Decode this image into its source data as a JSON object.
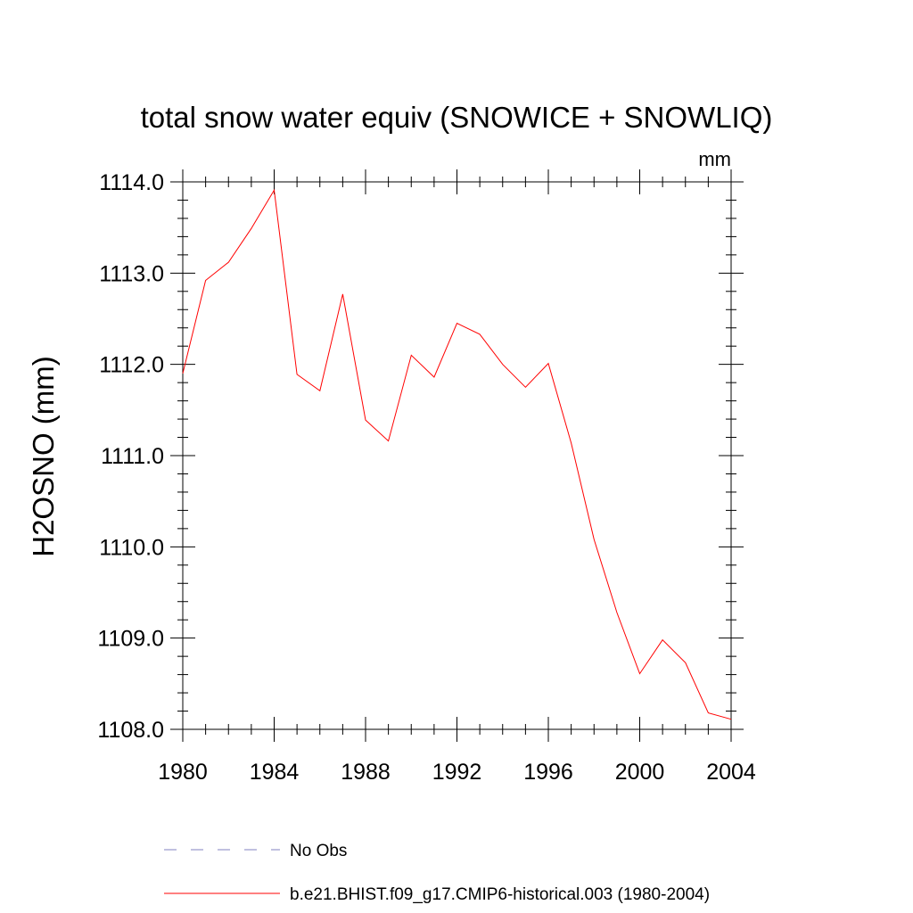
{
  "chart_data": {
    "type": "line",
    "title": "total snow water equiv (SNOWICE + SNOWLIQ)",
    "units_label": "mm",
    "ylabel": "H2OSNO  (mm)",
    "xlabel": "",
    "xlim": [
      1980,
      2004
    ],
    "ylim": [
      1108.0,
      1114.0
    ],
    "x_ticks": [
      1980,
      1984,
      1988,
      1992,
      1996,
      2000,
      2004
    ],
    "x_tick_labels": [
      "1980",
      "1984",
      "1988",
      "1992",
      "1996",
      "2000",
      "2004"
    ],
    "y_ticks": [
      1108.0,
      1109.0,
      1110.0,
      1111.0,
      1112.0,
      1113.0,
      1114.0
    ],
    "y_tick_labels": [
      "1108.0",
      "1109.0",
      "1110.0",
      "1111.0",
      "1112.0",
      "1113.0",
      "1114.0"
    ],
    "grid": false,
    "legend_position": "bottom",
    "series": [
      {
        "name": "No Obs",
        "color": "#8080c0",
        "style": "dashed",
        "x": [],
        "values": []
      },
      {
        "name": "b.e21.BHIST.f09_g17.CMIP6-historical.003 (1980-2004)",
        "color": "#ff0000",
        "style": "solid",
        "x": [
          1980,
          1981,
          1982,
          1983,
          1984,
          1985,
          1986,
          1987,
          1988,
          1989,
          1990,
          1991,
          1992,
          1993,
          1994,
          1995,
          1996,
          1997,
          1998,
          1999,
          2000,
          2001,
          2002,
          2003,
          2004
        ],
        "values": [
          1111.9,
          1112.92,
          1113.12,
          1113.49,
          1113.91,
          1111.89,
          1111.71,
          1112.77,
          1111.39,
          1111.16,
          1112.1,
          1111.86,
          1112.45,
          1112.33,
          1112.0,
          1111.75,
          1112.01,
          1111.14,
          1110.08,
          1109.28,
          1108.61,
          1108.98,
          1108.73,
          1108.18,
          1108.11
        ]
      }
    ]
  }
}
